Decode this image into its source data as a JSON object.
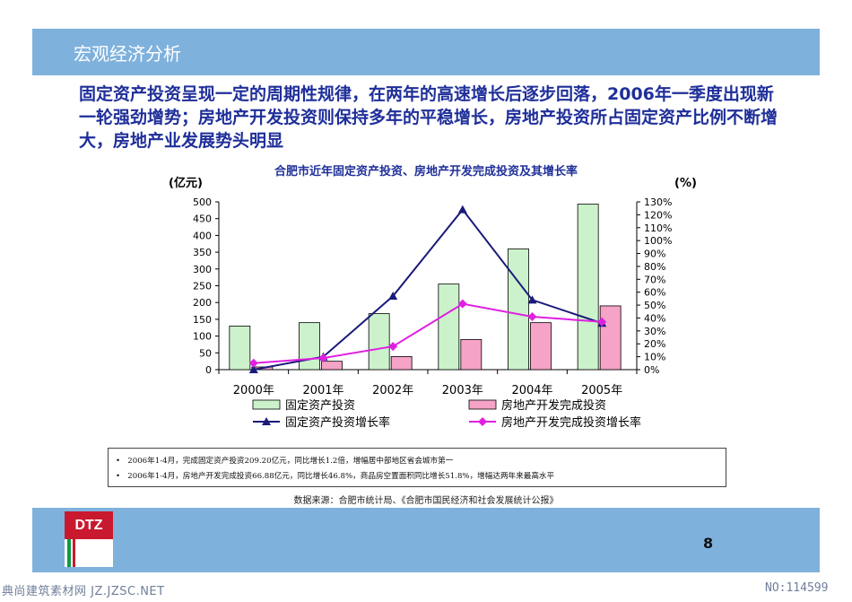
{
  "header": {
    "title": "宏观经济分析"
  },
  "headline": "固定资产投资呈现一定的周期性规律，在两年的高速增长后逐步回落，2006年一季度出现新一轮强劲增势；房地产开发投资则保持多年的平稳增长，房地产投资所占固定资产比例不断增大，房地产业发展势头明显",
  "chart_data": {
    "type": "bar",
    "title": "合肥市近年固定资产投资、房地产开发完成投资及其增长率",
    "y_left_label": "(亿元)",
    "y_right_label": "(%)",
    "categories": [
      "2000年",
      "2001年",
      "2002年",
      "2003年",
      "2004年",
      "2005年"
    ],
    "y_left_ticks": [
      "0",
      "50",
      "100",
      "150",
      "200",
      "250",
      "300",
      "350",
      "400",
      "450",
      "500"
    ],
    "y_right_ticks": [
      "0%",
      "10%",
      "20%",
      "30%",
      "40%",
      "50%",
      "60%",
      "70%",
      "80%",
      "90%",
      "100%",
      "110%",
      "120%",
      "130%"
    ],
    "ylim_left": [
      0,
      500
    ],
    "ylim_right": [
      0,
      130
    ],
    "bar_series": [
      {
        "name": "固定资产投资",
        "color": "#ccf2cc",
        "values": [
          130,
          140,
          167,
          255,
          360,
          493
        ]
      },
      {
        "name": "房地产开发完成投资",
        "color": "#f5a3c7",
        "values": [
          8,
          25,
          39,
          90,
          140,
          190
        ]
      }
    ],
    "line_series": [
      {
        "name": "固定资产投资增长率",
        "color": "#1a1a7a",
        "marker": "triangle",
        "values": [
          0,
          10,
          57,
          124,
          54,
          36
        ]
      },
      {
        "name": "房地产开发完成投资增长率",
        "color": "#e020e0",
        "marker": "diamond",
        "values": [
          5,
          9,
          18,
          51,
          41,
          37
        ]
      }
    ]
  },
  "notes": [
    "2006年1-4月，完成固定资产投资209.20亿元，同比增长1.2倍，增幅居中部地区省会城市第一",
    "2006年1-4月，房地产开发完成投资66.88亿元，同比增长46.8%，商品房空置面积同比增长51.8%，增幅达两年来最高水平"
  ],
  "source": "数据来源：合肥市统计局、《合肥市国民经济和社会发展统计公报》",
  "footer": {
    "logo_text": "DTZ",
    "page_number": "8"
  },
  "watermark": {
    "left": "典尚建筑素材网 JZ.JZSC.NET",
    "right": "NO:114599"
  }
}
